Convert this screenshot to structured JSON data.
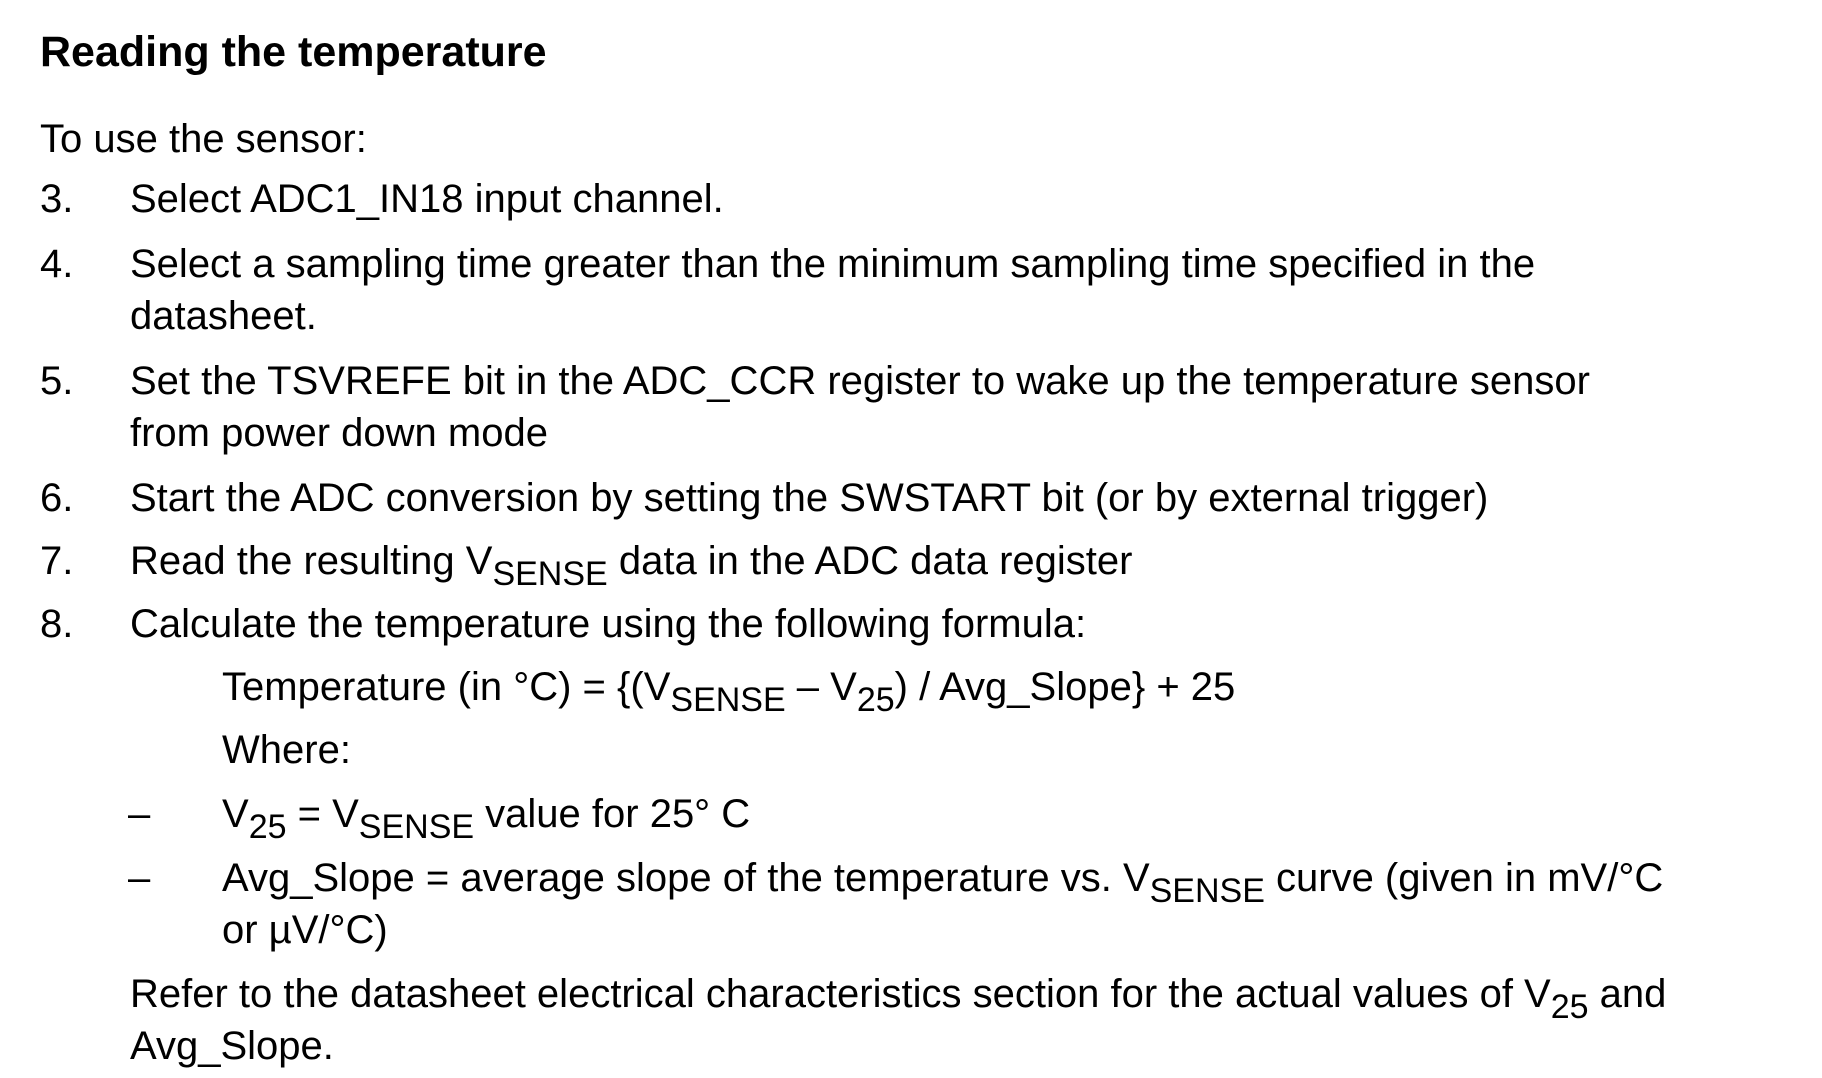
{
  "heading": "Reading the temperature",
  "intro": "To use the sensor:",
  "steps": [
    {
      "num": "3.",
      "text": "Select ADC1_IN18 input channel."
    },
    {
      "num": "4.",
      "line1": "Select a sampling time greater than the minimum sampling time specified in the",
      "line2": "datasheet."
    },
    {
      "num": "5.",
      "line1": "Set the TSVREFE bit in the ADC_CCR register to wake up the temperature sensor",
      "line2": "from power down mode"
    },
    {
      "num": "6.",
      "text": "Start the ADC conversion by setting the SWSTART bit (or by external trigger)"
    },
    {
      "num": "7.",
      "pre": "Read the resulting V",
      "sub": "SENSE",
      "post": " data in the ADC data register"
    },
    {
      "num": "8.",
      "text": "Calculate the temperature using the following formula:"
    }
  ],
  "formula": {
    "a": "Temperature (in °C) = {(V",
    "sub1": "SENSE",
    "b": " – V",
    "sub2": "25",
    "c": ") / Avg_Slope} + 25"
  },
  "where": "Where:",
  "definitions": [
    {
      "dash": "–",
      "a": "V",
      "sub1": "25",
      "b": " = V",
      "sub2": "SENSE",
      "c": " value for 25° C"
    },
    {
      "dash": "–",
      "a": "Avg_Slope = average slope of the temperature vs. V",
      "sub1": "SENSE",
      "b": " curve (given in mV/°C",
      "line2": "or µV/°C)"
    }
  ],
  "note": {
    "a": "Refer to the datasheet electrical characteristics section for the actual values of V",
    "sub": "25",
    "b": " and",
    "line2": "Avg_Slope."
  }
}
